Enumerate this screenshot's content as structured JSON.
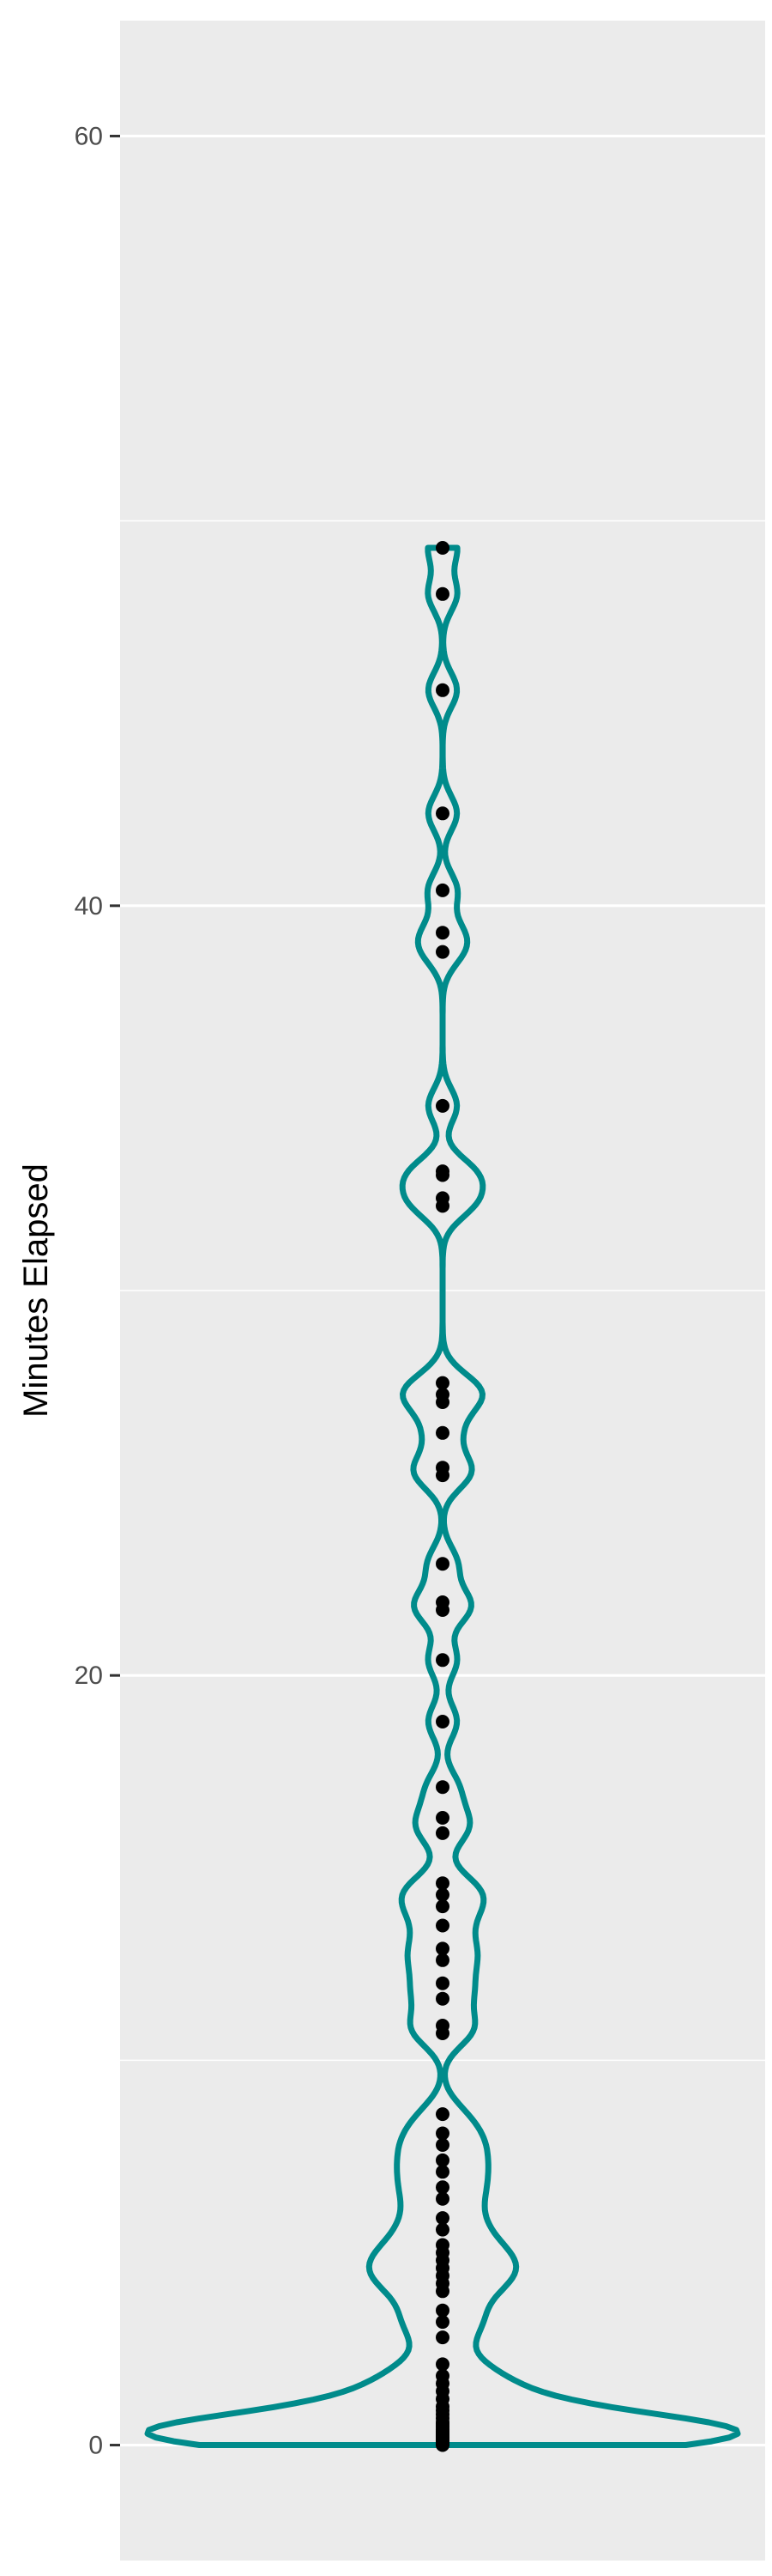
{
  "chart_data": {
    "type": "violin",
    "title": "",
    "xlabel": "",
    "ylabel": "Minutes Elapsed",
    "ylim": [
      -3,
      63
    ],
    "y_ticks": [
      0,
      20,
      40,
      60
    ],
    "y_minor_ticks": [
      10,
      30,
      50
    ],
    "grid": true,
    "legend": "none",
    "colors": {
      "panel": "#ebebeb",
      "gridline": "#ffffff",
      "violin": "#008b8b",
      "points": "#000000",
      "tick_label": "#4d4d4d",
      "axis_title": "#000000"
    },
    "points": [
      0,
      0.02,
      0.05,
      0.08,
      0.1,
      0.12,
      0.15,
      0.18,
      0.2,
      0.22,
      0.25,
      0.28,
      0.3,
      0.33,
      0.36,
      0.4,
      0.45,
      0.5,
      0.55,
      0.6,
      0.7,
      0.8,
      0.9,
      1.0,
      1.2,
      1.4,
      1.6,
      1.8,
      2.1,
      2.8,
      3.2,
      3.5,
      4.0,
      4.2,
      4.4,
      4.6,
      4.8,
      5.0,
      5.2,
      5.6,
      5.9,
      6.4,
      6.7,
      7.1,
      7.4,
      7.8,
      8.1,
      8.6,
      10.7,
      10.9,
      11.6,
      12.0,
      12.6,
      12.9,
      13.5,
      14.0,
      14.3,
      14.6,
      15.9,
      16.3,
      17.1,
      18.8,
      20.4,
      21.7,
      21.9,
      22.9,
      25.2,
      25.4,
      26.3,
      27.1,
      27.3,
      27.6,
      32.2,
      32.4,
      33.0,
      33.1,
      34.8,
      38.8,
      39.3,
      40.4,
      42.4,
      45.6,
      48.1,
      49.3
    ]
  }
}
